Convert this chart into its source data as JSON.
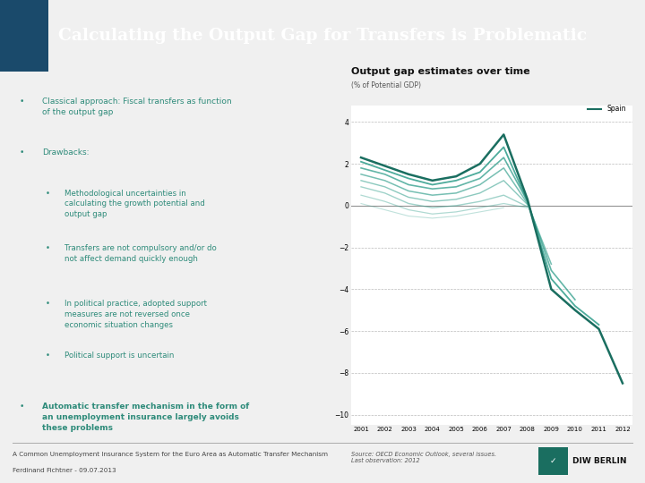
{
  "title": "Calculating the Output Gap for Transfers is Problematic",
  "title_bg": "#2e8b7a",
  "title_color": "#ffffff",
  "header_square_color": "#1a4a6b",
  "bg_color": "#ffffff",
  "slide_bg": "#f0f0f0",
  "footer_line1": "A Common Unemployment Insurance System for the Euro Area as Automatic Transfer Mechanism",
  "footer_line2": "Ferdinand Fichtner - 09.07.2013",
  "diw_text": "DIW BERLIN",
  "bullet_color": "#2e8b7a",
  "text_color": "#2e8b7a",
  "bullets": [
    {
      "level": 1,
      "text": "Classical approach: Fiscal transfers as function\nof the output gap",
      "bold": false
    },
    {
      "level": 1,
      "text": "Drawbacks:",
      "bold": false
    },
    {
      "level": 2,
      "text": "Methodological uncertainties in\ncalculating the growth potential and\noutput gap",
      "bold": false
    },
    {
      "level": 2,
      "text": "Transfers are not compulsory and/or do\nnot affect demand quickly enough",
      "bold": false
    },
    {
      "level": 2,
      "text": "In political practice, adopted support\nmeasures are not reversed once\neconomic situation changes",
      "bold": false
    },
    {
      "level": 2,
      "text": "Political support is uncertain",
      "bold": false
    },
    {
      "level": 1,
      "text": "Automatic transfer mechanism in the form of\nan unemployment insurance largely avoids\nthese problems",
      "bold": true
    }
  ],
  "chart_title": "Output gap estimates over time",
  "chart_subtitle": "(% of Potential GDP)",
  "chart_source": "Source: OECD Economic Outlook, several issues.\nLast observation: 2012",
  "x_labels": [
    "2001",
    "2002",
    "2003",
    "2004",
    "2005",
    "2006",
    "2007",
    "2008",
    "2009",
    "2010",
    "2011",
    "2012"
  ],
  "yticks": [
    4,
    2,
    0,
    -2,
    -4,
    -6,
    -8,
    -10
  ],
  "ylim": [
    -10.5,
    4.8
  ],
  "teal_dark": "#1a6e60",
  "teal_mid": "#2e9d8a",
  "series_spain": [
    2.3,
    1.9,
    1.5,
    1.2,
    1.4,
    2.0,
    3.4,
    0.3,
    -4.0,
    -5.0,
    -5.9,
    -8.5
  ],
  "series_2": [
    2.1,
    1.7,
    1.3,
    1.0,
    1.2,
    1.6,
    2.8,
    0.2,
    -3.5,
    -4.8,
    -5.7,
    null
  ],
  "series_3": [
    1.8,
    1.5,
    1.0,
    0.8,
    0.9,
    1.3,
    2.3,
    0.2,
    -3.1,
    -4.5,
    null,
    null
  ],
  "series_4": [
    1.5,
    1.2,
    0.7,
    0.5,
    0.6,
    1.0,
    1.8,
    0.1,
    -2.8,
    null,
    null,
    null
  ],
  "series_5": [
    1.2,
    0.9,
    0.4,
    0.2,
    0.3,
    0.6,
    1.2,
    0.05,
    null,
    null,
    null,
    null
  ],
  "series_6": [
    0.9,
    0.6,
    0.1,
    -0.1,
    0.0,
    0.2,
    0.5,
    -0.05,
    null,
    null,
    null,
    null
  ],
  "series_7": [
    0.5,
    0.2,
    -0.2,
    -0.4,
    -0.3,
    -0.1,
    0.1,
    -0.1,
    null,
    null,
    null,
    null
  ],
  "series_8": [
    0.1,
    -0.2,
    -0.5,
    -0.6,
    -0.5,
    -0.3,
    -0.1,
    null,
    null,
    null,
    null,
    null
  ]
}
